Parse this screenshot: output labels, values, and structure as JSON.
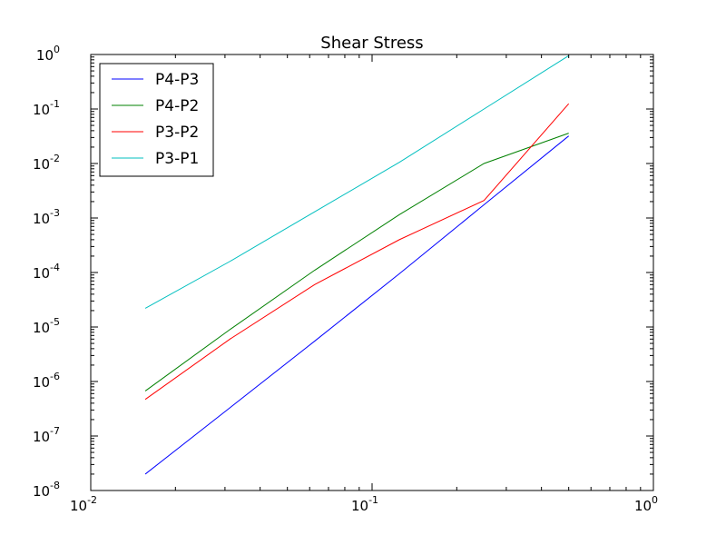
{
  "chart_data": {
    "type": "line",
    "title": "Shear Stress",
    "xlabel": "",
    "ylabel": "",
    "xscale": "log",
    "yscale": "log",
    "xlim": [
      0.01,
      1
    ],
    "ylim": [
      1e-08,
      1
    ],
    "x_ticks": [
      {
        "base": "10",
        "exp": "-2"
      },
      {
        "base": "10",
        "exp": "-1"
      },
      {
        "base": "10",
        "exp": "0"
      }
    ],
    "y_ticks": [
      {
        "base": "10",
        "exp": "-8"
      },
      {
        "base": "10",
        "exp": "-7"
      },
      {
        "base": "10",
        "exp": "-6"
      },
      {
        "base": "10",
        "exp": "-5"
      },
      {
        "base": "10",
        "exp": "-4"
      },
      {
        "base": "10",
        "exp": "-3"
      },
      {
        "base": "10",
        "exp": "-2"
      },
      {
        "base": "10",
        "exp": "-1"
      },
      {
        "base": "10",
        "exp": "0"
      }
    ],
    "grid": false,
    "legend_position": "top-left",
    "x": [
      0.015625,
      0.03125,
      0.0625,
      0.125,
      0.25,
      0.5
    ],
    "series": [
      {
        "name": "P4-P3",
        "color": "#0000ff",
        "values": [
          2e-08,
          3.3e-07,
          5.5e-06,
          9.5e-05,
          0.00175,
          0.032
        ]
      },
      {
        "name": "P4-P2",
        "color": "#008000",
        "values": [
          6.7e-07,
          9e-06,
          0.00011,
          0.00115,
          0.01,
          0.036
        ]
      },
      {
        "name": "P3-P2",
        "color": "#ff0000",
        "values": [
          4.7e-07,
          6e-06,
          6e-05,
          0.0004,
          0.0021,
          0.125
        ]
      },
      {
        "name": "P3-P1",
        "color": "#00bfbf",
        "values": [
          2.2e-05,
          0.00016,
          0.0013,
          0.0105,
          0.1,
          0.95
        ]
      }
    ]
  }
}
